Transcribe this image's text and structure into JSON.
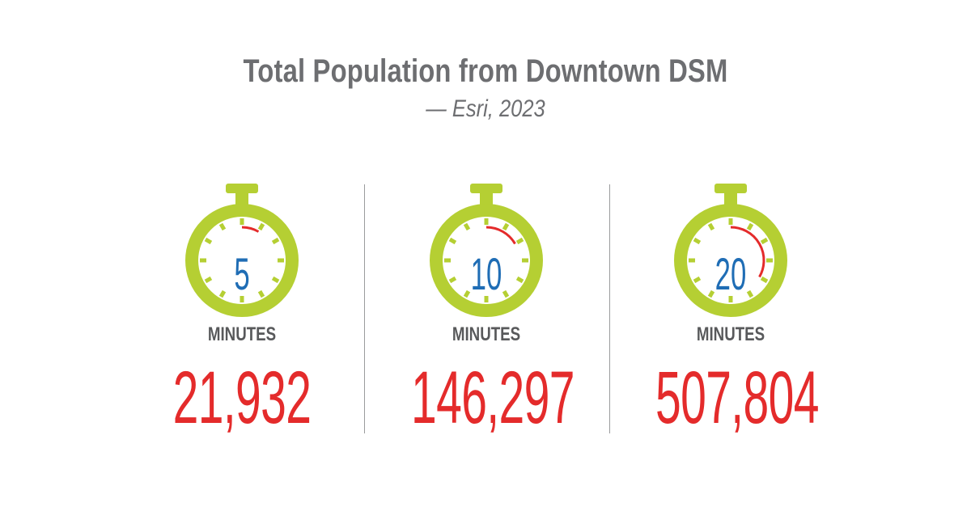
{
  "header": {
    "title": "Total Population from Downtown DSM",
    "subtitle": "— Esri, 2023"
  },
  "colors": {
    "timer_green": "#b5cf33",
    "minute_blue": "#1f6db5",
    "population_red": "#e42b2b",
    "text_gray": "#6d6e71"
  },
  "stats": [
    {
      "minutes": "5",
      "label": "MINUTES",
      "population": "21,932",
      "progress": 0.0833
    },
    {
      "minutes": "10",
      "label": "MINUTES",
      "population": "146,297",
      "progress": 0.1667
    },
    {
      "minutes": "20",
      "label": "MINUTES",
      "population": "507,804",
      "progress": 0.3333
    }
  ],
  "icons": [
    "stopwatch-icon"
  ]
}
